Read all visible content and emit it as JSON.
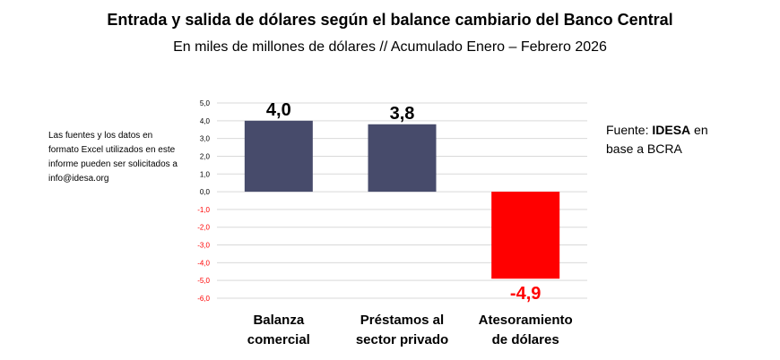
{
  "title": "Entrada y salida de dólares según el balance cambiario del Banco Central",
  "subtitle": "En miles de millones de dólares // Acumulado Enero – Febrero 2026",
  "note_left": "Las fuentes y los datos en formato Excel utilizados en este informe pueden ser solicitados a info@idesa.org",
  "source": {
    "prefix": "Fuente: ",
    "brand": "IDESA",
    "suffix": " en base a BCRA"
  },
  "colors": {
    "positive_bar": "#474b6b",
    "negative_bar": "#ff0000",
    "negative_text": "#ff0000",
    "positive_text": "#000000",
    "gridline": "#d9d9d9"
  },
  "chart_data": {
    "type": "bar",
    "title": "Entrada y salida de dólares según el balance cambiario del Banco Central",
    "subtitle": "En miles de millones de dólares // Acumulado Enero – Febrero 2026",
    "categories": [
      "Balanza comercial",
      "Préstamos al sector privado",
      "Atesoramiento de dólares"
    ],
    "category_lines": [
      [
        "Balanza",
        "comercial"
      ],
      [
        "Préstamos al",
        "sector privado"
      ],
      [
        "Atesoramiento",
        "de dólares"
      ]
    ],
    "values": [
      4.0,
      3.8,
      -4.9
    ],
    "value_labels": [
      "4,0",
      "3,8",
      "-4,9"
    ],
    "ylim": [
      -6,
      5
    ],
    "yticks": [
      5,
      4,
      3,
      2,
      1,
      0,
      -1,
      -2,
      -3,
      -4,
      -5,
      -6
    ],
    "ytick_labels": [
      "5,0",
      "4,0",
      "3,0",
      "2,0",
      "1,0",
      "0,0",
      "-1,0",
      "-2,0",
      "-3,0",
      "-4,0",
      "-5,0",
      "-6,0"
    ],
    "grid": true,
    "xlabel": "",
    "ylabel": ""
  }
}
